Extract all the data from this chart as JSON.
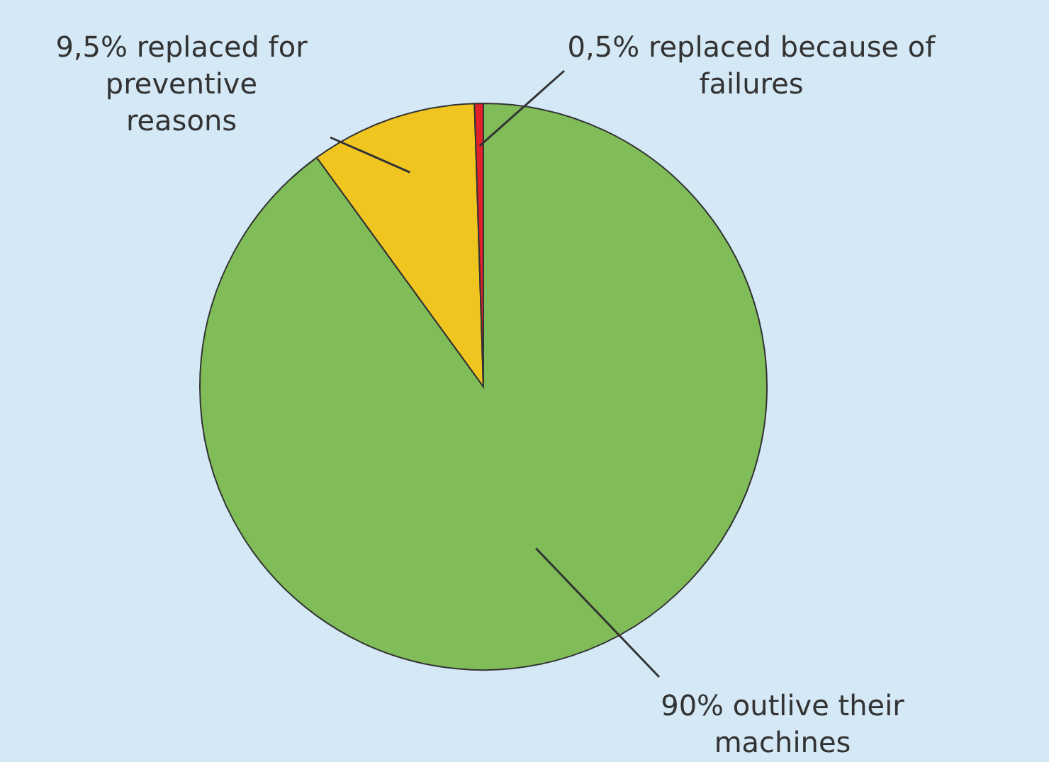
{
  "chart_data": {
    "type": "pie",
    "categories": [
      "90% outlive their machines",
      "9,5% replaced for preventive reasons",
      "0,5% replaced because of failures"
    ],
    "values": [
      90,
      9.5,
      0.5
    ],
    "colors": [
      "#80bc58",
      "#f0c520",
      "#e0202a"
    ]
  }
}
